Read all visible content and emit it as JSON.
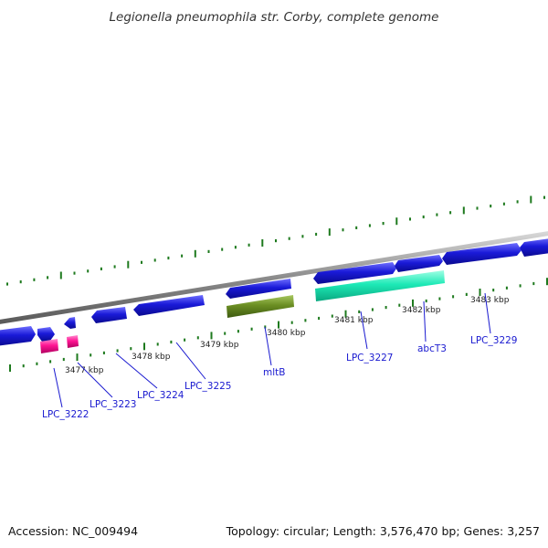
{
  "title": "Legionella pneumophila str. Corby, complete genome",
  "footer": {
    "accession": "Accession: NC_009494",
    "summary": "Topology: circular; Length: 3,576,470 bp; Genes: 3,257"
  },
  "colors": {
    "background": "#ffffff",
    "backbone": "#8c8c8c",
    "tick": "#1e7a1e",
    "gene_default": "#1a1ad8",
    "gene_pink": "#ff1493",
    "gene_olive": "#6b8e23",
    "gene_aqua": "#1de9b6",
    "label_link": "#1a1ad0"
  },
  "scale": {
    "unit": "kbp",
    "labels": [
      {
        "text": "3477 kbp"
      },
      {
        "text": "3478 kbp"
      },
      {
        "text": "3479 kbp"
      },
      {
        "text": "3480 kbp"
      },
      {
        "text": "3481 kbp"
      },
      {
        "text": "3482 kbp"
      },
      {
        "text": "3483 kbp"
      }
    ]
  },
  "gene_labels": [
    {
      "name": "LPC_3222"
    },
    {
      "name": "LPC_3223"
    },
    {
      "name": "LPC_3224"
    },
    {
      "name": "LPC_3225"
    },
    {
      "name": "mltB"
    },
    {
      "name": "LPC_3227"
    },
    {
      "name": "abcT3"
    },
    {
      "name": "LPC_3229"
    }
  ]
}
